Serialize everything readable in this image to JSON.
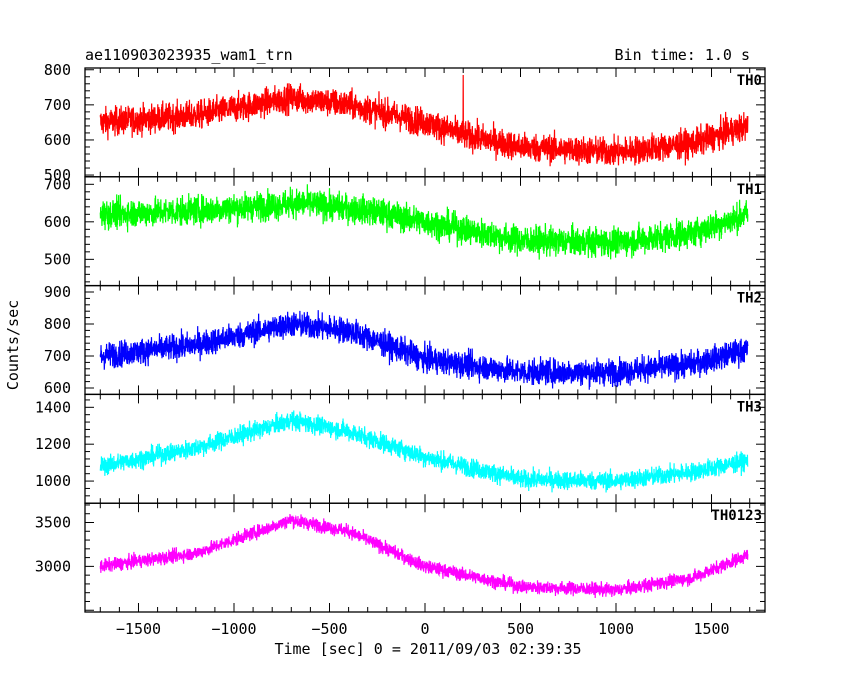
{
  "header": {
    "title": "ae110903023935_wam1_trn",
    "bin_time": "Bin time: 1.0 s"
  },
  "chart_data": {
    "type": "line",
    "title": "ae110903023935_wam1_trn",
    "subtitle": "Bin time: 1.0 s",
    "xlabel": "Time [sec] 0 = 2011/09/03 02:39:35",
    "ylabel": "Counts/sec",
    "xlim": [
      -1780,
      1780
    ],
    "x_range": [
      -1700,
      1690
    ],
    "x_ticks": [
      -1500,
      -1000,
      -500,
      0,
      500,
      1000,
      1500
    ],
    "x_tick_labels": [
      "−1500",
      "−1000",
      "−500",
      "0",
      "500",
      "1000",
      "1500"
    ],
    "grid": false,
    "panels": [
      {
        "name": "TH0",
        "color": "#ff0000",
        "ylim": [
          495,
          805
        ],
        "y_ticks": [
          500,
          600,
          700,
          800
        ],
        "y_tick_labels": [
          "500",
          "600",
          "700",
          "800"
        ],
        "trend": [
          [
            -1700,
            650
          ],
          [
            -1200,
            670
          ],
          [
            -700,
            720
          ],
          [
            -400,
            700
          ],
          [
            0,
            650
          ],
          [
            200,
            615
          ],
          [
            500,
            580
          ],
          [
            1000,
            565
          ],
          [
            1400,
            590
          ],
          [
            1690,
            640
          ]
        ],
        "noise": 40,
        "spikes": [
          [
            200,
            785
          ]
        ]
      },
      {
        "name": "TH1",
        "color": "#00ff00",
        "ylim": [
          430,
          720
        ],
        "y_ticks": [
          500,
          600,
          700
        ],
        "y_tick_labels": [
          "500",
          "600",
          "700"
        ],
        "trend": [
          [
            -1700,
            620
          ],
          [
            -1200,
            630
          ],
          [
            -650,
            650
          ],
          [
            -300,
            630
          ],
          [
            0,
            600
          ],
          [
            500,
            550
          ],
          [
            1000,
            545
          ],
          [
            1400,
            570
          ],
          [
            1690,
            620
          ]
        ],
        "noise": 38,
        "spikes": []
      },
      {
        "name": "TH2",
        "color": "#0000ff",
        "ylim": [
          580,
          920
        ],
        "y_ticks": [
          600,
          700,
          800,
          900
        ],
        "y_tick_labels": [
          "600",
          "700",
          "800",
          "900"
        ],
        "trend": [
          [
            -1700,
            700
          ],
          [
            -1200,
            735
          ],
          [
            -700,
            800
          ],
          [
            -400,
            780
          ],
          [
            0,
            690
          ],
          [
            500,
            650
          ],
          [
            1000,
            650
          ],
          [
            1400,
            675
          ],
          [
            1690,
            720
          ]
        ],
        "noise": 40,
        "spikes": []
      },
      {
        "name": "TH3",
        "color": "#00ffff",
        "ylim": [
          880,
          1470
        ],
        "y_ticks": [
          1000,
          1200,
          1400
        ],
        "y_tick_labels": [
          "1000",
          "1200",
          "1400"
        ],
        "trend": [
          [
            -1700,
            1080
          ],
          [
            -1200,
            1180
          ],
          [
            -700,
            1330
          ],
          [
            -400,
            1270
          ],
          [
            0,
            1130
          ],
          [
            500,
            1010
          ],
          [
            1000,
            1000
          ],
          [
            1400,
            1050
          ],
          [
            1690,
            1110
          ]
        ],
        "noise": 50,
        "spikes": []
      },
      {
        "name": "TH0123",
        "color": "#ff00ff",
        "ylim": [
          2480,
          3720
        ],
        "y_ticks": [
          3000,
          3500
        ],
        "y_tick_labels": [
          "3000",
          "3500"
        ],
        "trend": [
          [
            -1700,
            3000
          ],
          [
            -1200,
            3150
          ],
          [
            -700,
            3530
          ],
          [
            -400,
            3400
          ],
          [
            0,
            3000
          ],
          [
            500,
            2770
          ],
          [
            1000,
            2730
          ],
          [
            1400,
            2870
          ],
          [
            1690,
            3130
          ]
        ],
        "noise": 75,
        "spikes": []
      }
    ]
  }
}
